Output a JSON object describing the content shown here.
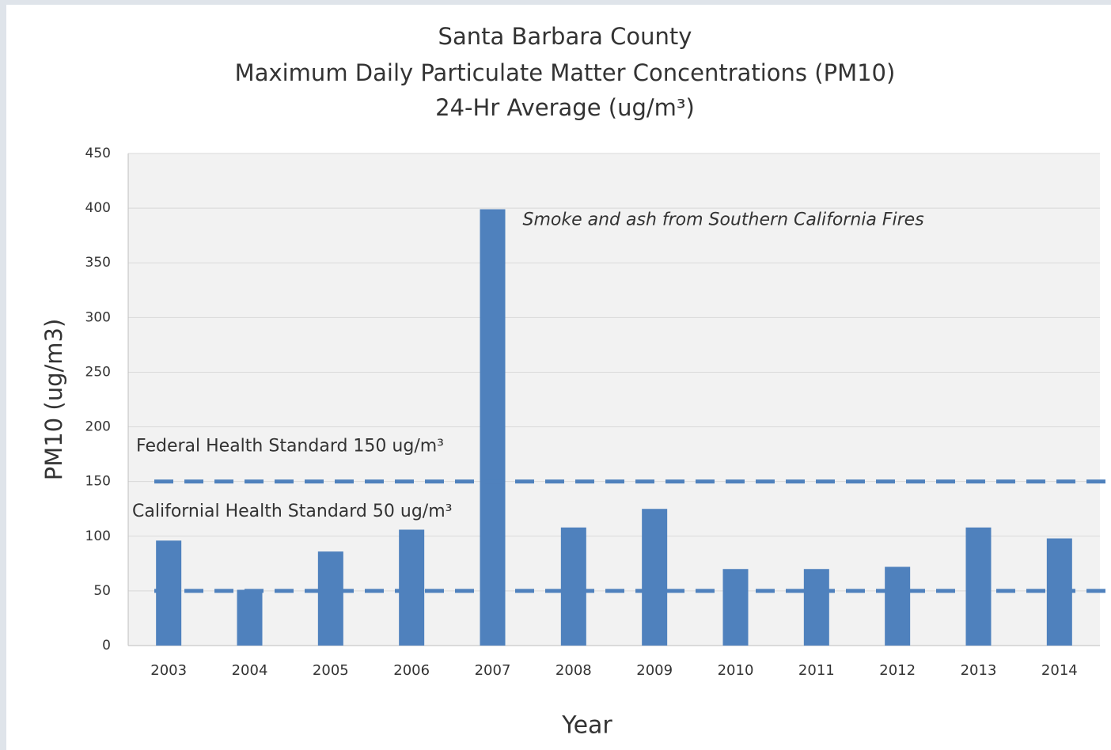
{
  "chart_data": {
    "type": "bar",
    "title": [
      "Santa Barbara County",
      "Maximum Daily Particulate Matter Concentrations (PM10)",
      "24-Hr Average (ug/m³)"
    ],
    "x_label": "Year",
    "y_label": "PM10 (ug/m3)",
    "categories": [
      "2003",
      "2004",
      "2005",
      "2006",
      "2007",
      "2008",
      "2009",
      "2010",
      "2011",
      "2012",
      "2013",
      "2014"
    ],
    "values": [
      96,
      51,
      86,
      106,
      399,
      108,
      125,
      70,
      70,
      72,
      108,
      98
    ],
    "color": "#4f81bd",
    "ylim": [
      0,
      450
    ],
    "yticks": [
      0,
      50,
      100,
      150,
      200,
      250,
      300,
      350,
      400,
      450
    ],
    "grid": true,
    "reference_lines": [
      {
        "value": 150,
        "label": "Federal Health Standard 150 ug/m³"
      },
      {
        "value": 50,
        "label": "Californial Health Standard 50 ug/m³"
      }
    ],
    "annotations": [
      {
        "text": "Smoke and ash from Southern California Fires",
        "category": 4
      }
    ]
  }
}
